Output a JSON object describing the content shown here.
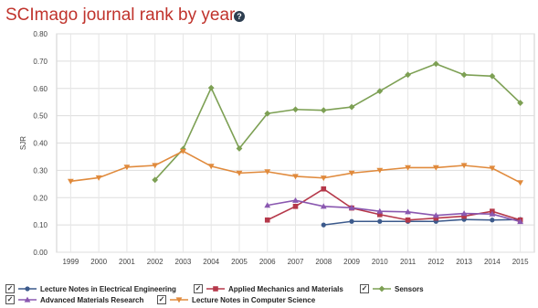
{
  "title": "SCImago journal rank by year",
  "help_icon": "question-circle-icon",
  "chart_data": {
    "type": "line",
    "title": "SCImago journal rank by year",
    "ylabel": "SJR",
    "xlabel": "",
    "ylim": [
      0,
      0.8
    ],
    "yticks": [
      "0.00",
      "0.10",
      "0.20",
      "0.30",
      "0.40",
      "0.50",
      "0.60",
      "0.70",
      "0.80"
    ],
    "x": [
      1999,
      2000,
      2001,
      2002,
      2003,
      2004,
      2005,
      2006,
      2007,
      2008,
      2009,
      2010,
      2011,
      2012,
      2013,
      2014,
      2015
    ],
    "grid": true,
    "legend": "bottom",
    "series": [
      {
        "name": "Lecture Notes in Electrical Engineering",
        "color": "#3c5a8c",
        "marker": "circle",
        "values": [
          null,
          null,
          null,
          null,
          null,
          null,
          null,
          null,
          null,
          0.1,
          0.113,
          0.113,
          0.113,
          0.113,
          0.12,
          0.118,
          0.12
        ]
      },
      {
        "name": "Applied Mechanics and Materials",
        "color": "#b5384a",
        "marker": "square",
        "values": [
          null,
          null,
          null,
          null,
          null,
          null,
          null,
          0.118,
          0.168,
          0.232,
          0.162,
          0.138,
          0.118,
          0.125,
          0.132,
          0.15,
          0.118
        ]
      },
      {
        "name": "Sensors",
        "color": "#7da054",
        "marker": "diamond",
        "values": [
          null,
          null,
          null,
          0.265,
          0.378,
          0.602,
          0.38,
          0.508,
          0.523,
          0.52,
          0.532,
          0.59,
          0.65,
          0.69,
          0.65,
          0.645,
          0.547
        ]
      },
      {
        "name": "Advanced Materials Research",
        "color": "#8a58b0",
        "marker": "triangle",
        "values": [
          null,
          null,
          null,
          null,
          null,
          null,
          null,
          0.172,
          0.19,
          0.168,
          0.163,
          0.15,
          0.148,
          0.135,
          0.142,
          0.14,
          0.112
        ]
      },
      {
        "name": "Lecture Notes in Computer Science",
        "color": "#e08a3c",
        "marker": "triangle-down",
        "values": [
          0.26,
          0.273,
          0.312,
          0.318,
          0.37,
          0.315,
          0.29,
          0.295,
          0.278,
          0.272,
          0.29,
          0.3,
          0.31,
          0.31,
          0.318,
          0.308,
          0.255
        ]
      }
    ]
  },
  "legend": {
    "items": [
      {
        "label": "Lecture Notes in Electrical Engineering",
        "checked": "✓"
      },
      {
        "label": "Applied Mechanics and Materials",
        "checked": "✓"
      },
      {
        "label": "Sensors",
        "checked": "✓"
      },
      {
        "label": "Advanced Materials Research",
        "checked": "✓"
      },
      {
        "label": "Lecture Notes in Computer Science",
        "checked": "✓"
      }
    ]
  }
}
